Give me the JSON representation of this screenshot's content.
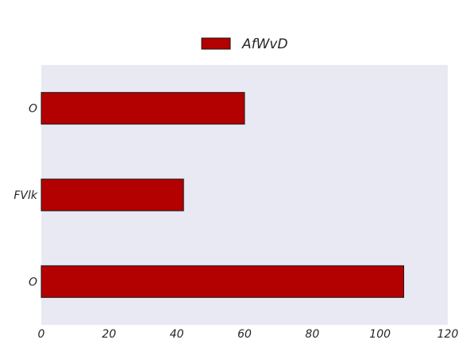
{
  "chart_data": {
    "type": "bar",
    "orientation": "horizontal",
    "categories": [
      "O",
      "FVlk",
      "O"
    ],
    "series": [
      {
        "name": "AfWvD",
        "values": [
          107,
          42,
          60
        ],
        "color": "#b30000"
      }
    ],
    "xlim": [
      0,
      120
    ],
    "x_ticks": [
      "0",
      "20",
      "40",
      "60",
      "80",
      "100",
      "120"
    ],
    "title": "",
    "xlabel": "",
    "ylabel": "",
    "grid": false,
    "legend_position": "top-center",
    "plot_background": "#e9e9f3",
    "bar_edge_color": "#1a1a1a"
  }
}
